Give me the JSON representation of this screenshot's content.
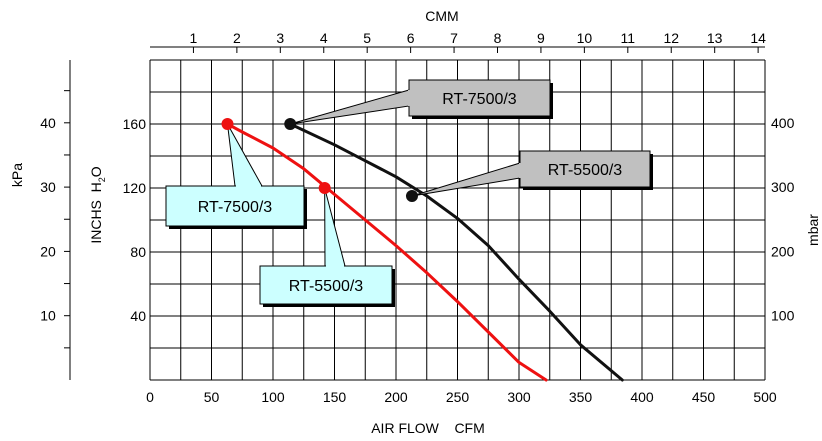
{
  "chart_data": {
    "type": "line",
    "x_axis": {
      "label": "AIR FLOW    CFM",
      "range": [
        0,
        500
      ],
      "ticks": [
        0,
        50,
        100,
        150,
        200,
        250,
        300,
        350,
        400,
        450,
        500
      ],
      "minor_step": 25
    },
    "top_axis": {
      "label": "CMM",
      "ticks": [
        1,
        2,
        3,
        4,
        5,
        6,
        7,
        8,
        9,
        10,
        11,
        12,
        13,
        14
      ]
    },
    "y_axis": {
      "label_main": "INCHS  H",
      "label_sub": "2",
      "label_end": "O",
      "range": [
        0,
        200
      ],
      "ticks": [
        40,
        80,
        120,
        160
      ],
      "minor_step": 20
    },
    "left_outer_axis": {
      "label": "kPa",
      "ticks": [
        10,
        20,
        30,
        40
      ]
    },
    "right_axis": {
      "label": "mbar",
      "ticks": [
        100,
        200,
        300,
        400
      ]
    },
    "grid": true,
    "legend": "none",
    "colors": {
      "red_series": "#ee1111",
      "black_series": "#111111",
      "red_callout": "#ccffff",
      "black_callout": "#c0c0c0"
    },
    "series": [
      {
        "name": "RT-7500/3",
        "color": "#ee1111",
        "points": [
          [
            63,
            160
          ],
          [
            75,
            155
          ],
          [
            100,
            145
          ],
          [
            125,
            132
          ],
          [
            150,
            116
          ],
          [
            175,
            100
          ],
          [
            200,
            84
          ],
          [
            225,
            67
          ],
          [
            250,
            49
          ],
          [
            275,
            30
          ],
          [
            300,
            11
          ],
          [
            322,
            0
          ]
        ]
      },
      {
        "name": "RT-5500/3",
        "color": "#111111",
        "points": [
          [
            114,
            160
          ],
          [
            150,
            147
          ],
          [
            175,
            137
          ],
          [
            200,
            127
          ],
          [
            225,
            115
          ],
          [
            250,
            101
          ],
          [
            275,
            84
          ],
          [
            300,
            63
          ],
          [
            325,
            43
          ],
          [
            350,
            22
          ],
          [
            384,
            0
          ]
        ]
      }
    ],
    "markers": [
      {
        "x": 63,
        "y": 160,
        "color": "#ee1111"
      },
      {
        "x": 142,
        "y": 120,
        "color": "#ee1111"
      },
      {
        "x": 114,
        "y": 160,
        "color": "#111111"
      },
      {
        "x": 213,
        "y": 115,
        "color": "#111111"
      }
    ],
    "annotations": [
      {
        "text": "RT-7500/3",
        "style": "red"
      },
      {
        "text": "RT-5500/3",
        "style": "red"
      },
      {
        "text": "RT-7500/3",
        "style": "black"
      },
      {
        "text": "RT-5500/3",
        "style": "black"
      }
    ]
  }
}
